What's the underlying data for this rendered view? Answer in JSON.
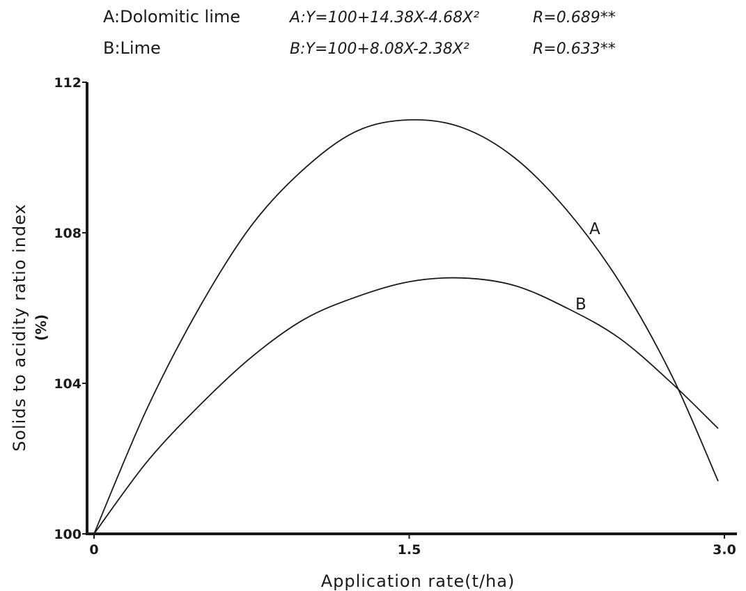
{
  "legend": [
    {
      "key": "A",
      "name": "A:Dolomitic lime",
      "equation": "A:Y=100+14.38X-4.68X²",
      "r": "R=0.689**"
    },
    {
      "key": "B",
      "name": "B:Lime",
      "equation": "B:Y=100+8.08X-2.38X²",
      "r": "R=0.633**"
    }
  ],
  "colors": {
    "ink": "#1a1a1a",
    "background": "#ffffff"
  },
  "chart_data": {
    "type": "line",
    "title": "",
    "xlabel": "Application rate(t/ha)",
    "ylabel": "Solids to acidity ratio index",
    "ylabel_unit": "(%)",
    "xlim": [
      0,
      3.0
    ],
    "ylim": [
      100,
      112
    ],
    "xticks": [
      "0",
      "1.5",
      "3.0"
    ],
    "yticks": [
      "100",
      "104",
      "108",
      "112"
    ],
    "xtick_values": [
      0,
      1.5,
      3.0
    ],
    "ytick_values": [
      100,
      104,
      108,
      112
    ],
    "grid": false,
    "series": [
      {
        "name": "A",
        "x": [
          0,
          0.25,
          0.5,
          0.75,
          1.0,
          1.25,
          1.5,
          1.75,
          2.0,
          2.25,
          2.5,
          2.75,
          2.97
        ],
        "values": [
          100,
          103.3,
          106.0,
          108.2,
          109.7,
          110.7,
          111.0,
          110.8,
          110.0,
          108.6,
          106.7,
          104.2,
          101.4
        ]
      },
      {
        "name": "B",
        "x": [
          0,
          0.25,
          0.5,
          0.75,
          1.0,
          1.25,
          1.5,
          1.75,
          2.0,
          2.25,
          2.5,
          2.75,
          2.97
        ],
        "values": [
          100,
          101.9,
          103.4,
          104.7,
          105.7,
          106.3,
          106.7,
          106.8,
          106.6,
          106.0,
          105.2,
          104.0,
          102.8
        ]
      }
    ]
  }
}
